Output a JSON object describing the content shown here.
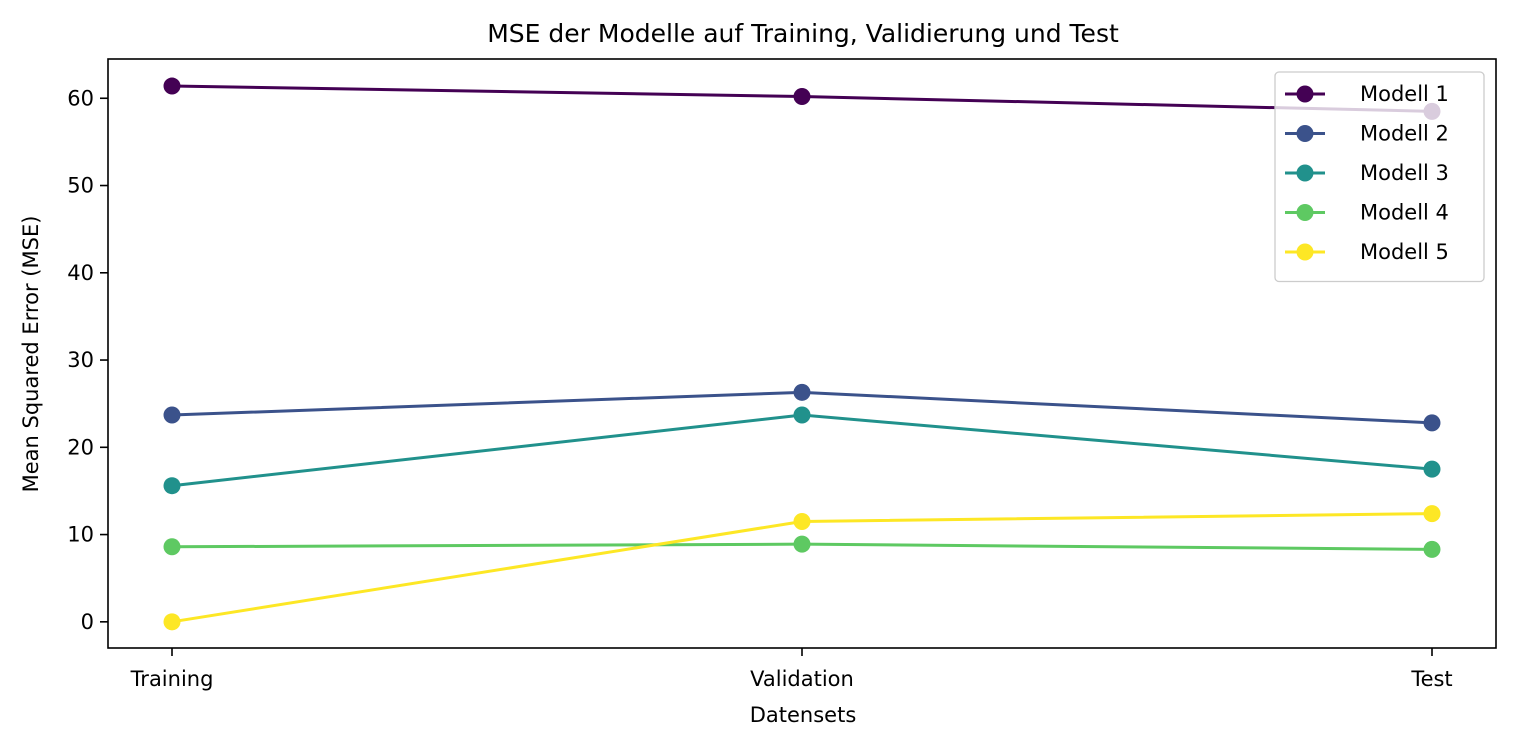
{
  "chart_data": {
    "type": "line",
    "title": "MSE der Modelle auf Training, Validierung und Test",
    "xlabel": "Datensets",
    "ylabel": "Mean Squared Error (MSE)",
    "categories": [
      "Training",
      "Validation",
      "Test"
    ],
    "ylim": [
      -3,
      64.5
    ],
    "yticks": [
      0,
      10,
      20,
      30,
      40,
      50,
      60
    ],
    "grid": false,
    "legend_position": "top-right",
    "series": [
      {
        "name": "Modell 1",
        "color": "#440154",
        "values": [
          61.4,
          60.2,
          58.5
        ]
      },
      {
        "name": "Modell 2",
        "color": "#3b528b",
        "values": [
          23.7,
          26.3,
          22.8
        ]
      },
      {
        "name": "Modell 3",
        "color": "#21918c",
        "values": [
          15.6,
          23.7,
          17.5
        ]
      },
      {
        "name": "Modell 4",
        "color": "#5ec962",
        "values": [
          8.6,
          8.9,
          8.3
        ]
      },
      {
        "name": "Modell 5",
        "color": "#fde725",
        "values": [
          0.0,
          11.5,
          12.4
        ]
      }
    ]
  }
}
